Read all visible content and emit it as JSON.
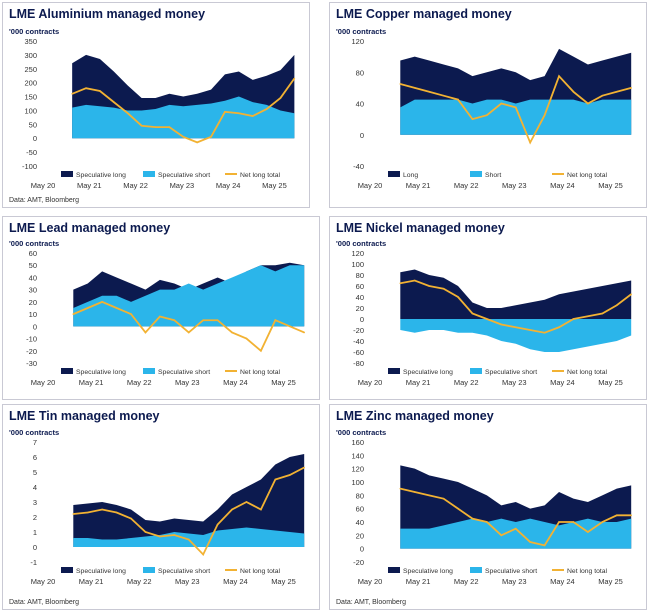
{
  "colors": {
    "long": "#0c1a4f",
    "short": "#2bb5ea",
    "net": "#f2b233",
    "frame": "#c9c9d4",
    "text": "#0c1a4f"
  },
  "x_ticks": [
    "May 20",
    "May 21",
    "May 22",
    "May 23",
    "May 24",
    "May 25"
  ],
  "chart_data": [
    {
      "type": "area",
      "title": "LME Aluminium managed money",
      "units": "'000 contracts",
      "source": "Data: AMT, Bloomberg",
      "ylim": [
        -100,
        350
      ],
      "yticks": [
        -100,
        -50,
        0,
        50,
        100,
        150,
        200,
        250,
        300,
        350
      ],
      "x_range": [
        2020.37,
        2025.9
      ],
      "legend": [
        "Speculative long",
        "Speculative short",
        "Net long total"
      ],
      "short_positive": true,
      "x": [
        2021.0,
        2021.3,
        2021.6,
        2021.9,
        2022.2,
        2022.5,
        2022.8,
        2023.1,
        2023.4,
        2023.7,
        2024.0,
        2024.3,
        2024.6,
        2024.9,
        2025.2,
        2025.5,
        2025.8
      ],
      "series": [
        {
          "name": "Speculative long",
          "values": [
            270,
            300,
            285,
            240,
            190,
            145,
            145,
            160,
            150,
            160,
            175,
            230,
            240,
            210,
            225,
            245,
            300
          ]
        },
        {
          "name": "Speculative short",
          "values": [
            110,
            120,
            115,
            110,
            100,
            100,
            105,
            120,
            115,
            120,
            125,
            135,
            150,
            130,
            120,
            100,
            90
          ]
        },
        {
          "name": "Net long total",
          "values": [
            160,
            180,
            170,
            130,
            90,
            45,
            40,
            40,
            5,
            -15,
            5,
            95,
            90,
            80,
            105,
            145,
            215
          ]
        }
      ]
    },
    {
      "type": "area",
      "title": "LME Copper managed money",
      "units": "'000 contracts",
      "source": "",
      "ylim": [
        -40,
        120
      ],
      "yticks": [
        -40,
        0,
        40,
        80,
        120
      ],
      "x_range": [
        2020.37,
        2025.9
      ],
      "legend": [
        "Long",
        "Short",
        "Net long total"
      ],
      "short_positive": true,
      "x": [
        2021.0,
        2021.3,
        2021.6,
        2021.9,
        2022.2,
        2022.5,
        2022.8,
        2023.1,
        2023.4,
        2023.7,
        2024.0,
        2024.3,
        2024.6,
        2024.9,
        2025.2,
        2025.5,
        2025.8
      ],
      "series": [
        {
          "name": "Long",
          "values": [
            95,
            100,
            95,
            90,
            85,
            75,
            80,
            85,
            80,
            70,
            75,
            110,
            100,
            90,
            95,
            100,
            105
          ]
        },
        {
          "name": "Short",
          "values": [
            35,
            45,
            45,
            45,
            45,
            40,
            45,
            45,
            40,
            45,
            45,
            45,
            45,
            40,
            45,
            45,
            45
          ]
        },
        {
          "name": "Net long total",
          "values": [
            65,
            60,
            55,
            50,
            45,
            20,
            25,
            40,
            35,
            -10,
            25,
            75,
            55,
            40,
            50,
            55,
            60
          ]
        }
      ]
    },
    {
      "type": "area",
      "title": "LME Lead managed money",
      "units": "'000 contracts",
      "source": "",
      "ylim": [
        -30,
        60
      ],
      "yticks": [
        -30,
        -20,
        -10,
        0,
        10,
        20,
        30,
        40,
        50,
        60
      ],
      "x_range": [
        2020.37,
        2025.9
      ],
      "legend": [
        "Speculative long",
        "Speculative short",
        "Net long total"
      ],
      "short_positive": true,
      "x": [
        2021.0,
        2021.3,
        2021.6,
        2021.9,
        2022.2,
        2022.5,
        2022.8,
        2023.1,
        2023.4,
        2023.7,
        2024.0,
        2024.3,
        2024.6,
        2024.9,
        2025.2,
        2025.5,
        2025.8
      ],
      "series": [
        {
          "name": "Speculative long",
          "values": [
            30,
            35,
            45,
            40,
            35,
            30,
            38,
            35,
            30,
            35,
            40,
            35,
            45,
            50,
            50,
            52,
            50
          ]
        },
        {
          "name": "Speculative short",
          "values": [
            15,
            20,
            25,
            25,
            20,
            25,
            30,
            30,
            35,
            30,
            35,
            40,
            45,
            50,
            45,
            50,
            50
          ]
        },
        {
          "name": "Net long total",
          "values": [
            10,
            15,
            20,
            15,
            10,
            -5,
            8,
            5,
            -5,
            5,
            5,
            -5,
            -10,
            -20,
            5,
            0,
            -5
          ]
        }
      ]
    },
    {
      "type": "area",
      "title": "LME Nickel managed money",
      "units": "'000 contracts",
      "source": "",
      "ylim": [
        -80,
        120
      ],
      "yticks": [
        -80,
        -60,
        -40,
        -20,
        0,
        20,
        40,
        60,
        80,
        100,
        120
      ],
      "x_range": [
        2020.37,
        2025.9
      ],
      "legend": [
        "Speculative long",
        "Speculative short",
        "Net long total"
      ],
      "short_positive": false,
      "x": [
        2021.0,
        2021.3,
        2021.6,
        2021.9,
        2022.2,
        2022.5,
        2022.8,
        2023.1,
        2023.4,
        2023.7,
        2024.0,
        2024.3,
        2024.6,
        2024.9,
        2025.2,
        2025.5,
        2025.8
      ],
      "series": [
        {
          "name": "Speculative long",
          "values": [
            85,
            90,
            80,
            75,
            60,
            30,
            20,
            20,
            25,
            30,
            35,
            45,
            50,
            55,
            60,
            65,
            70
          ]
        },
        {
          "name": "Speculative short",
          "values": [
            -20,
            -25,
            -20,
            -20,
            -25,
            -25,
            -30,
            -40,
            -45,
            -55,
            -60,
            -60,
            -55,
            -50,
            -45,
            -40,
            -30
          ]
        },
        {
          "name": "Net long total",
          "values": [
            65,
            70,
            60,
            55,
            40,
            10,
            0,
            -10,
            -15,
            -20,
            -25,
            -15,
            0,
            5,
            10,
            25,
            45
          ]
        }
      ]
    },
    {
      "type": "area",
      "title": "LME Tin managed money",
      "units": "'000 contracts",
      "source": "Data: AMT, Bloomberg",
      "ylim": [
        -1,
        7
      ],
      "yticks": [
        -1,
        0,
        1,
        2,
        3,
        4,
        5,
        6,
        7
      ],
      "x_range": [
        2020.37,
        2025.9
      ],
      "legend": [
        "Speculative long",
        "Speculative short",
        "Net long total"
      ],
      "short_positive": true,
      "x": [
        2021.0,
        2021.3,
        2021.6,
        2021.9,
        2022.2,
        2022.5,
        2022.8,
        2023.1,
        2023.4,
        2023.7,
        2024.0,
        2024.3,
        2024.6,
        2024.9,
        2025.2,
        2025.5,
        2025.8
      ],
      "series": [
        {
          "name": "Speculative long",
          "values": [
            2.8,
            2.9,
            3.0,
            2.8,
            2.5,
            1.8,
            1.7,
            1.9,
            1.8,
            1.7,
            2.5,
            3.5,
            4.0,
            4.5,
            5.5,
            6.0,
            6.2
          ]
        },
        {
          "name": "Speculative short",
          "values": [
            0.6,
            0.6,
            0.5,
            0.5,
            0.6,
            0.7,
            0.8,
            1.0,
            0.9,
            0.8,
            1.1,
            1.2,
            1.3,
            1.2,
            1.1,
            1.0,
            0.9
          ]
        },
        {
          "name": "Net long total",
          "values": [
            2.2,
            2.3,
            2.5,
            2.3,
            1.9,
            1.0,
            0.7,
            0.8,
            0.5,
            -0.5,
            1.5,
            2.5,
            3.0,
            2.5,
            4.5,
            4.8,
            5.3
          ]
        }
      ]
    },
    {
      "type": "area",
      "title": "LME Zinc managed money",
      "units": "'000 contracts",
      "source": "Data: AMT, Bloomberg",
      "ylim": [
        -20,
        160
      ],
      "yticks": [
        -20,
        0,
        20,
        40,
        60,
        80,
        100,
        120,
        140,
        160
      ],
      "x_range": [
        2020.37,
        2025.9
      ],
      "legend": [
        "Speculative long",
        "Speculative short",
        "Net long total"
      ],
      "short_positive": true,
      "x": [
        2021.0,
        2021.3,
        2021.6,
        2021.9,
        2022.2,
        2022.5,
        2022.8,
        2023.1,
        2023.4,
        2023.7,
        2024.0,
        2024.3,
        2024.6,
        2024.9,
        2025.2,
        2025.5,
        2025.8
      ],
      "series": [
        {
          "name": "Speculative long",
          "values": [
            125,
            120,
            110,
            105,
            100,
            90,
            80,
            65,
            70,
            60,
            65,
            85,
            75,
            70,
            80,
            90,
            95
          ]
        },
        {
          "name": "Speculative short",
          "values": [
            30,
            30,
            30,
            35,
            40,
            45,
            40,
            45,
            40,
            45,
            40,
            35,
            40,
            45,
            40,
            40,
            45
          ]
        },
        {
          "name": "Net long total",
          "values": [
            90,
            85,
            80,
            75,
            60,
            45,
            40,
            20,
            30,
            10,
            5,
            40,
            40,
            25,
            40,
            50,
            50
          ]
        }
      ]
    }
  ]
}
